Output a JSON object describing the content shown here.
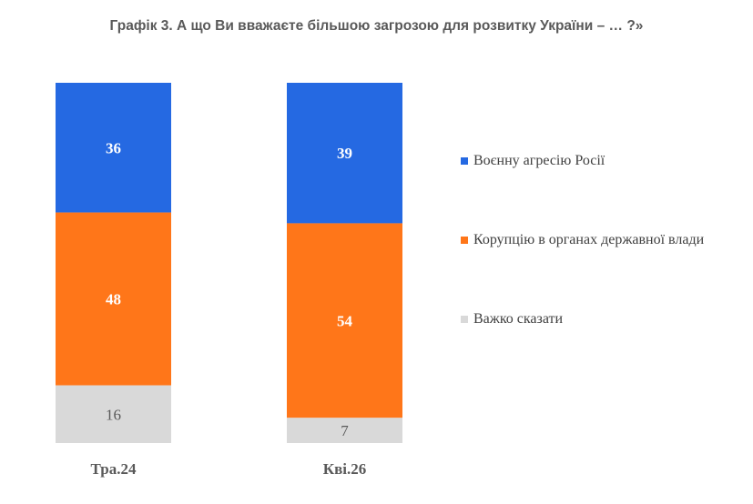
{
  "title": "Графік 3. А що Ви вважаєте більшою загрозою для розвитку України – … ?»",
  "chart_data": {
    "type": "bar",
    "stacked": true,
    "categories": [
      "Тра.24",
      "Кві.26"
    ],
    "series": [
      {
        "name": "Воєнну агресію Росії",
        "values": [
          36,
          39
        ],
        "color": "#2569E2"
      },
      {
        "name": "Корупцію в органах державної влади",
        "values": [
          48,
          54
        ],
        "color": "#FF7619"
      },
      {
        "name": "Важко сказати",
        "values": [
          16,
          7
        ],
        "color": "#D9D9D9"
      }
    ],
    "ylim": [
      0,
      100
    ],
    "grid": false,
    "legend_position": "right"
  }
}
